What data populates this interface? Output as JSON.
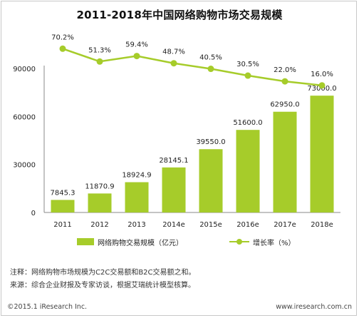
{
  "title": "2011-2018年中国网络购物市场交易规模",
  "chart_data": {
    "type": "bar",
    "categories": [
      "2011",
      "2012",
      "2013",
      "2014e",
      "2015e",
      "2016e",
      "2017e",
      "2018e"
    ],
    "series": [
      {
        "name": "网络购物交易规模（亿元）",
        "type": "bar",
        "axis": "left",
        "values": [
          7845.3,
          11870.9,
          18924.9,
          28145.1,
          39550.0,
          51600.0,
          62950.0,
          73000.0
        ],
        "labels": [
          "7845.3",
          "11870.9",
          "18924.9",
          "28145.1",
          "39550.0",
          "51600.0",
          "62950.0",
          "73000.0"
        ],
        "color": "#a6cc2a"
      },
      {
        "name": "增长率（%）",
        "type": "line",
        "axis": "right-hidden",
        "values": [
          70.2,
          51.3,
          59.4,
          48.7,
          40.5,
          30.5,
          22.0,
          16.0
        ],
        "labels": [
          "70.2%",
          "51.3%",
          "59.4%",
          "48.7%",
          "40.5%",
          "30.5%",
          "22.0%",
          "16.0%"
        ],
        "color": "#a6cc2a"
      }
    ],
    "y_ticks": [
      "0",
      "30000",
      "60000",
      "90000"
    ],
    "ylim": [
      0,
      90000
    ],
    "grid": false,
    "legend": "bottom"
  },
  "notes": {
    "note1": "注释：网络购物市场规模为C2C交易额和B2C交易额之和。",
    "note2": "来源：综合企业财报及专家访谈，根据艾瑞统计模型核算。"
  },
  "footer": {
    "left": "©2015.1 iResearch Inc.",
    "right": "www.iresearch.com.cn"
  }
}
